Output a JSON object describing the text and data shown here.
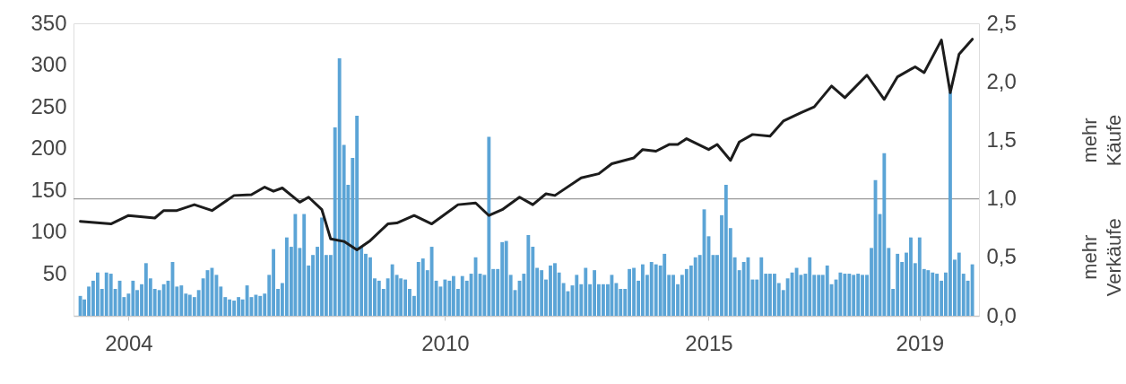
{
  "chart_data": {
    "type": "bar",
    "x": [
      "2003-02",
      "2003-03",
      "2003-04",
      "2003-05",
      "2003-06",
      "2003-07",
      "2003-08",
      "2003-09",
      "2003-10",
      "2003-11",
      "2003-12",
      "2004-01",
      "2004-02",
      "2004-03",
      "2004-04",
      "2004-05",
      "2004-06",
      "2004-07",
      "2004-08",
      "2004-09",
      "2004-10",
      "2004-11",
      "2004-12",
      "2005-01",
      "2005-02",
      "2005-03",
      "2005-04",
      "2005-05",
      "2005-06",
      "2005-07",
      "2005-08",
      "2005-09",
      "2005-10",
      "2005-11",
      "2005-12",
      "2006-01",
      "2006-02",
      "2006-03",
      "2006-04",
      "2006-05",
      "2006-06",
      "2006-07",
      "2006-08",
      "2006-09",
      "2006-10",
      "2006-11",
      "2006-12",
      "2007-01",
      "2007-02",
      "2007-03",
      "2007-04",
      "2007-05",
      "2007-06",
      "2007-07",
      "2007-08",
      "2007-09",
      "2007-10",
      "2007-11",
      "2007-12",
      "2008-01",
      "2008-02",
      "2008-03",
      "2008-04",
      "2008-05",
      "2008-06",
      "2008-07",
      "2008-08",
      "2008-09",
      "2008-10",
      "2008-11",
      "2008-12",
      "2009-01",
      "2009-02",
      "2009-03",
      "2009-04",
      "2009-05",
      "2009-06",
      "2009-07",
      "2009-08",
      "2009-09",
      "2009-10",
      "2009-11",
      "2009-12",
      "2010-01",
      "2010-02",
      "2010-03",
      "2010-04",
      "2010-05",
      "2010-06",
      "2010-07",
      "2010-08",
      "2010-09",
      "2010-10",
      "2010-11",
      "2010-12",
      "2011-01",
      "2011-02",
      "2011-03",
      "2011-04",
      "2011-05",
      "2011-06",
      "2011-07",
      "2011-08",
      "2011-09",
      "2011-10",
      "2011-11",
      "2011-12",
      "2012-01",
      "2012-02",
      "2012-03",
      "2012-04",
      "2012-05",
      "2012-06",
      "2012-07",
      "2012-08",
      "2012-09",
      "2012-10",
      "2012-11",
      "2012-12",
      "2013-01",
      "2013-02",
      "2013-03",
      "2013-04",
      "2013-05",
      "2013-06",
      "2013-07",
      "2013-08",
      "2013-09",
      "2013-10",
      "2013-11",
      "2013-12",
      "2014-01",
      "2014-02",
      "2014-03",
      "2014-04",
      "2014-05",
      "2014-06",
      "2014-07",
      "2014-08",
      "2014-09",
      "2014-10",
      "2014-11",
      "2014-12",
      "2015-01",
      "2015-02",
      "2015-03",
      "2015-04",
      "2015-05",
      "2015-06",
      "2015-07",
      "2015-08",
      "2015-09",
      "2015-10",
      "2015-11",
      "2015-12",
      "2016-01",
      "2016-02",
      "2016-03",
      "2016-04",
      "2016-05",
      "2016-06",
      "2016-07",
      "2016-08",
      "2016-09",
      "2016-10",
      "2016-11",
      "2016-12",
      "2017-01",
      "2017-02",
      "2017-03",
      "2017-04",
      "2017-05",
      "2017-06",
      "2017-07",
      "2017-08",
      "2017-09",
      "2017-10",
      "2017-11",
      "2017-12",
      "2018-01",
      "2018-02",
      "2018-03",
      "2018-04",
      "2018-05",
      "2018-06",
      "2018-07",
      "2018-08",
      "2018-09",
      "2018-10",
      "2018-11",
      "2018-12",
      "2019-01",
      "2019-02",
      "2019-03",
      "2019-04",
      "2019-05",
      "2019-06",
      "2019-07",
      "2019-08",
      "2019-09",
      "2019-10",
      "2019-11",
      "2019-12",
      "2020-01"
    ],
    "xlim": [
      "2003-01-16",
      "2020-01-16"
    ],
    "xticks": [
      "2004",
      "2010",
      "2015",
      "2019"
    ],
    "ylim": [
      0,
      350
    ],
    "yticks": [
      50,
      100,
      150,
      200,
      250,
      300,
      350
    ],
    "y2lim": [
      0,
      2.5
    ],
    "y2ticks": [
      {
        "value": 0,
        "label": "0,0"
      },
      {
        "value": 0.5,
        "label": "0,5"
      },
      {
        "value": 1,
        "label": "1,0"
      },
      {
        "value": 1.5,
        "label": "1,5"
      },
      {
        "value": 2,
        "label": "2,0"
      },
      {
        "value": 2.5,
        "label": "2,5"
      }
    ],
    "series": [
      {
        "axis": "y2",
        "color": "#5ba4d6",
        "values": [
          0.17,
          0.14,
          0.25,
          0.3,
          0.37,
          0.23,
          0.37,
          0.36,
          0.23,
          0.3,
          0.16,
          0.19,
          0.3,
          0.22,
          0.27,
          0.45,
          0.32,
          0.23,
          0.22,
          0.27,
          0.3,
          0.46,
          0.25,
          0.26,
          0.19,
          0.18,
          0.16,
          0.22,
          0.32,
          0.39,
          0.41,
          0.35,
          0.25,
          0.16,
          0.14,
          0.13,
          0.16,
          0.14,
          0.26,
          0.16,
          0.18,
          0.17,
          0.19,
          0.35,
          0.57,
          0.23,
          0.28,
          0.67,
          0.59,
          0.87,
          0.58,
          0.87,
          0.43,
          0.52,
          0.59,
          0.84,
          0.52,
          0.52,
          1.61,
          2.2,
          1.46,
          1.12,
          1.35,
          1.71,
          0.59,
          0.53,
          0.5,
          0.32,
          0.3,
          0.23,
          0.32,
          0.44,
          0.35,
          0.32,
          0.31,
          0.23,
          0.17,
          0.46,
          0.49,
          0.39,
          0.59,
          0.3,
          0.25,
          0.31,
          0.3,
          0.34,
          0.23,
          0.34,
          0.3,
          0.36,
          0.5,
          0.36,
          0.35,
          1.53,
          0.4,
          0.4,
          0.63,
          0.64,
          0.35,
          0.22,
          0.3,
          0.36,
          0.69,
          0.59,
          0.41,
          0.39,
          0.31,
          0.43,
          0.45,
          0.37,
          0.28,
          0.21,
          0.26,
          0.35,
          0.27,
          0.41,
          0.27,
          0.39,
          0.27,
          0.27,
          0.27,
          0.35,
          0.28,
          0.23,
          0.23,
          0.4,
          0.41,
          0.3,
          0.44,
          0.35,
          0.46,
          0.44,
          0.43,
          0.53,
          0.35,
          0.35,
          0.27,
          0.35,
          0.4,
          0.43,
          0.5,
          0.52,
          0.91,
          0.68,
          0.52,
          0.52,
          0.86,
          1.12,
          0.75,
          0.5,
          0.39,
          0.46,
          0.5,
          0.31,
          0.31,
          0.5,
          0.36,
          0.36,
          0.36,
          0.28,
          0.22,
          0.32,
          0.37,
          0.41,
          0.35,
          0.36,
          0.5,
          0.35,
          0.35,
          0.35,
          0.43,
          0.27,
          0.31,
          0.37,
          0.36,
          0.36,
          0.35,
          0.36,
          0.35,
          0.35,
          0.58,
          1.16,
          0.87,
          1.39,
          0.58,
          0.23,
          0.53,
          0.46,
          0.54,
          0.67,
          0.45,
          0.67,
          0.4,
          0.39,
          0.37,
          0.36,
          0.3,
          0.37,
          1.91,
          0.48,
          0.54,
          0.36,
          0.3,
          0.44
        ]
      },
      {
        "type": "line",
        "color": "#1c1c1c",
        "x": [
          "2003-02",
          "2003-09",
          "2004-01",
          "2004-07",
          "2004-09",
          "2004-12",
          "2005-04",
          "2005-08",
          "2006-01",
          "2006-05",
          "2006-08",
          "2006-10",
          "2006-12",
          "2007-04",
          "2007-06",
          "2007-09",
          "2007-11",
          "2008-02",
          "2008-05",
          "2008-08",
          "2008-12",
          "2009-02",
          "2009-06",
          "2009-10",
          "2010-04",
          "2010-08",
          "2010-11",
          "2011-02",
          "2011-06",
          "2011-09",
          "2011-12",
          "2012-02",
          "2012-08",
          "2012-12",
          "2013-03",
          "2013-08",
          "2013-10",
          "2014-01",
          "2014-04",
          "2014-06",
          "2014-08",
          "2015-01",
          "2015-03",
          "2015-06",
          "2015-08",
          "2015-11",
          "2016-03",
          "2016-06",
          "2016-10",
          "2017-01",
          "2017-05",
          "2017-08",
          "2018-01",
          "2018-05",
          "2018-08",
          "2018-12",
          "2019-02",
          "2019-06",
          "2019-08",
          "2019-10",
          "2020-01"
        ],
        "values": [
          113,
          110,
          120,
          117,
          126,
          126,
          133,
          126,
          144,
          145,
          154,
          149,
          153,
          136,
          142,
          127,
          92,
          89,
          79,
          90,
          110,
          111,
          120,
          110,
          133,
          135,
          120,
          127,
          142,
          133,
          146,
          144,
          165,
          170,
          182,
          189,
          199,
          197,
          205,
          205,
          212,
          199,
          205,
          186,
          208,
          217,
          215,
          233,
          243,
          250,
          275,
          261,
          288,
          259,
          286,
          298,
          291,
          330,
          267,
          313,
          331
        ]
      }
    ],
    "ref_lines": [
      {
        "axis": "y2",
        "value": 1.0,
        "color": "#9a9a9a"
      }
    ],
    "annotations": [
      "mehr Käufe",
      "mehr Verkäufe"
    ]
  }
}
